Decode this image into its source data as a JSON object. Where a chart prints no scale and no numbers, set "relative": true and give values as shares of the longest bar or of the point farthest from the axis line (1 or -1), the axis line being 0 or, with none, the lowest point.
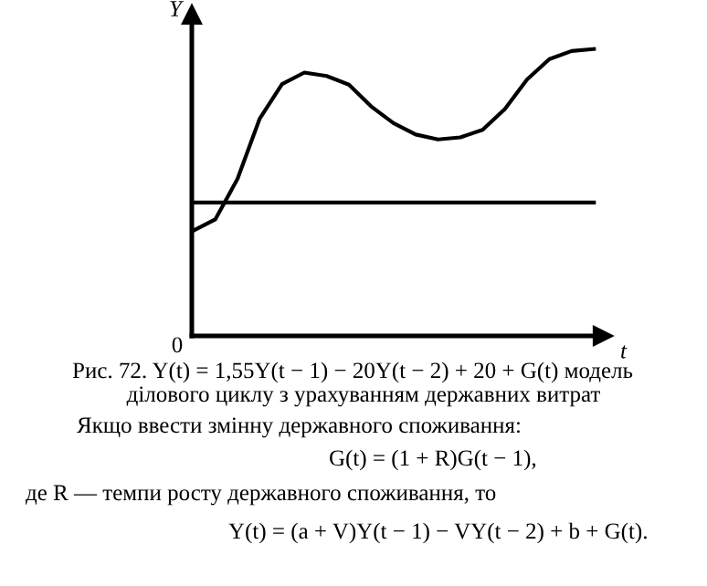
{
  "chart_data": {
    "type": "line",
    "relative": true,
    "xlabel": "t",
    "ylabel": "Y",
    "categories": [
      null,
      null,
      null,
      null,
      null,
      null,
      null,
      null,
      null,
      null,
      null,
      null,
      null,
      null,
      null,
      null,
      null,
      null,
      null
    ],
    "series": [
      {
        "color": "#000000",
        "values": [
          0.366,
          0.406,
          0.547,
          0.758,
          0.878,
          0.918,
          0.906,
          0.876,
          0.8,
          0.742,
          0.702,
          0.685,
          0.692,
          0.718,
          0.791,
          0.894,
          0.965,
          0.993,
          1.0
        ]
      },
      {
        "color": "#000000",
        "values": [
          0.465,
          0.465,
          0.465,
          0.465,
          0.465,
          0.465,
          0.465,
          0.465,
          0.465,
          0.465,
          0.465,
          0.465,
          0.465,
          0.465,
          0.465,
          0.465,
          0.465,
          0.465,
          0.465
        ]
      }
    ],
    "marker": "none",
    "line_style": "solid",
    "grid": false,
    "legend": false,
    "annotations": [
      "0",
      "Рис. 72. Y(t) = 1,55Y(t − 1) − 20Y(t − 2) + 20 + G(t) модель",
      "ділового циклу з урахуванням державних витрат",
      "Якщо ввести змінну державного споживання:",
      "G(t) = (1 + R)G(t − 1),",
      "де R — темпи росту державного споживання, то",
      "Y(t) = (a + V)Y(t − 1) − VY(t − 2) + b + G(t)."
    ]
  }
}
